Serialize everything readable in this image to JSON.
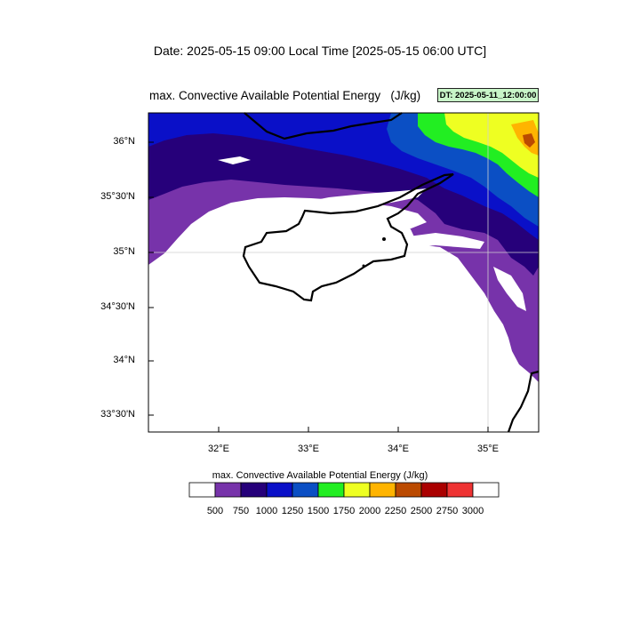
{
  "header": {
    "date_line": "Date: 2025-05-15  09:00 Local Time [2025-05-15  06:00 UTC]",
    "plot_title": "max. Convective Available Potential Energy   (J/kg)",
    "dt_badge": "DT: 2025-05-11_12:00:00"
  },
  "map": {
    "lat_labels": [
      "36°N",
      "35°30'N",
      "35°N",
      "34°30'N",
      "34°N",
      "33°30'N"
    ],
    "lon_labels": [
      "32°E",
      "33°E",
      "34°E",
      "35°E"
    ],
    "field_colors": {
      "purple": "#7733aa",
      "indigo": "#26007a",
      "blue": "#0a10c8",
      "mid_blue": "#0b4fc4",
      "green": "#22ee22",
      "yellow": "#eeff22",
      "orange": "#ffb400",
      "rust": "#bb4a00"
    }
  },
  "colorbar": {
    "title": "max. Convective Available Potential Energy  (J/kg)",
    "colors": [
      "#ffffff",
      "#7733aa",
      "#26007a",
      "#0a10c8",
      "#0b4fc4",
      "#22ee22",
      "#eeff22",
      "#ffb400",
      "#bb4a00",
      "#aa0000",
      "#ee3333",
      "#ffffff"
    ],
    "labels": [
      "500",
      "750",
      "1000",
      "1250",
      "1500",
      "1750",
      "2000",
      "2250",
      "2500",
      "2750",
      "3000"
    ]
  }
}
